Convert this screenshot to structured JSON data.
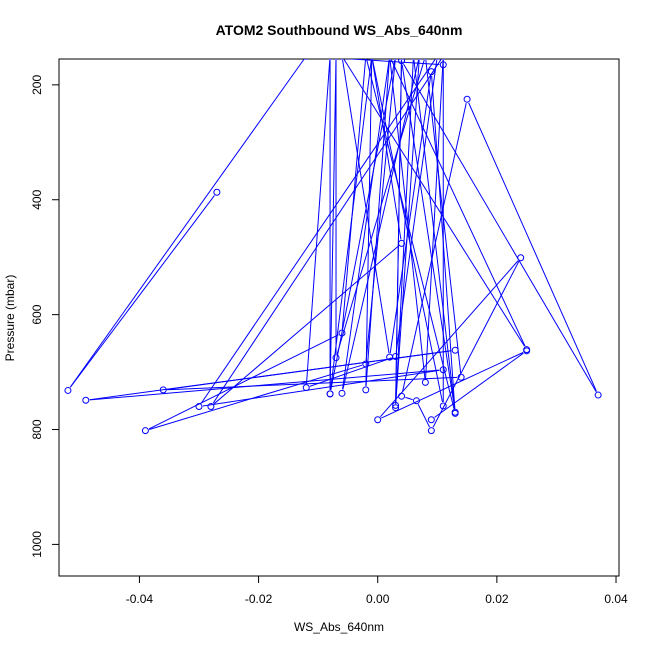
{
  "chart_data": {
    "type": "line",
    "title": "ATOM2 Southbound WS_Abs_640nm",
    "xlabel": "WS_Abs_640nm",
    "ylabel": "Pressure (mbar)",
    "xlim": [
      -0.0535,
      0.0405
    ],
    "ylim": [
      1055,
      155
    ],
    "y_reversed": true,
    "x_ticks": [
      -0.04,
      -0.02,
      0.0,
      0.02,
      0.04
    ],
    "x_tick_labels": [
      "-0.04",
      "-0.02",
      "0.00",
      "0.02",
      "0.04"
    ],
    "y_ticks": [
      200,
      400,
      600,
      800,
      1000
    ],
    "y_tick_labels": [
      "200",
      "400",
      "600",
      "800",
      "1000"
    ],
    "grid": false,
    "legend": "none",
    "series": [
      {
        "color": "#0000ff",
        "marker": "open-circle",
        "points": [
          [
            0.009,
            783
          ],
          [
            0.025,
            663
          ],
          [
            0.0,
            783
          ],
          [
            0.024,
            501
          ],
          [
            0.009,
            802
          ],
          [
            0.0065,
            750
          ],
          [
            0.004,
            742
          ],
          [
            0.015,
            225
          ],
          [
            0.037,
            740
          ],
          [
            0.004,
            158
          ],
          [
            0.013,
            770
          ],
          [
            0.006,
            150
          ],
          [
            0.003,
            762
          ],
          [
            0.004,
            150
          ],
          [
            0.003,
            758
          ],
          [
            0.007,
            150
          ],
          [
            -0.006,
            737
          ],
          [
            0.002,
            150
          ],
          [
            -0.002,
            731
          ],
          [
            -0.001,
            150
          ],
          [
            -0.008,
            738
          ],
          [
            -0.007,
            150
          ],
          [
            -0.007,
            675
          ],
          [
            0.008,
            150
          ],
          [
            0.014,
            709
          ],
          [
            -0.036,
            731
          ],
          [
            0.013,
            662
          ],
          [
            -0.049,
            749
          ],
          [
            0.011,
            696
          ],
          [
            -0.03,
            760
          ],
          [
            0.01,
            150
          ],
          [
            0.003,
            673
          ],
          [
            -0.012,
            727
          ],
          [
            -0.008,
            150
          ],
          [
            -0.008,
            738
          ],
          [
            0.003,
            150
          ],
          [
            -0.002,
            686
          ],
          [
            -0.039,
            802
          ],
          [
            -0.006,
            632
          ],
          [
            -0.002,
            150
          ],
          [
            0.013,
            772
          ],
          [
            0.009,
            177
          ],
          [
            0.002,
            674
          ],
          [
            -0.006,
            150
          ],
          [
            0.025,
            661
          ],
          [
            0.002,
            150
          ],
          [
            0.008,
            718
          ],
          [
            0.011,
            150
          ],
          [
            0.011,
            759
          ],
          [
            -0.001,
            150
          ],
          [
            0.004,
            476
          ],
          [
            -0.028,
            760
          ],
          [
            0.011,
            150
          ],
          [
            0.011,
            165
          ],
          [
            -0.012,
            150
          ],
          [
            -0.052,
            732
          ],
          [
            -0.027,
            387
          ]
        ]
      }
    ]
  }
}
